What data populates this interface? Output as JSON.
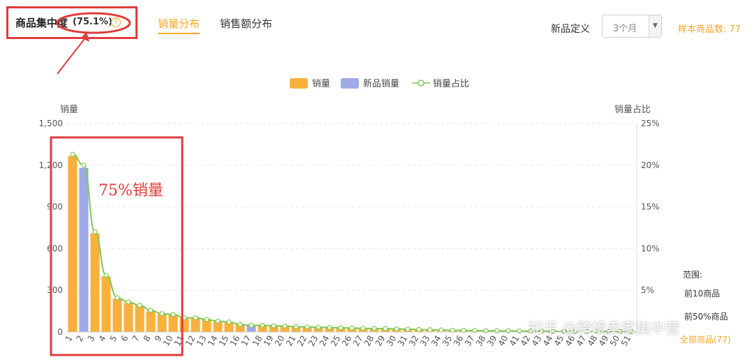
{
  "header": {
    "concentration_title": "商品集中度",
    "concentration_value": "(75.1%)",
    "help_icon": "question-circle-icon",
    "tabs": [
      {
        "label": "销量分布",
        "active": true
      },
      {
        "label": "销售额分布",
        "active": false
      }
    ],
    "new_product_label": "新品定义",
    "period_select": {
      "value": "3个月",
      "icon": "chevron-down-icon"
    },
    "sample_count": "样本商品数: 77"
  },
  "legend": {
    "sales": "销量",
    "new_sales": "新品销量",
    "share": "销量占比"
  },
  "range_panel": {
    "title": "范围:",
    "items": [
      "前10商品",
      "前50%商品",
      "全部商品(77)"
    ]
  },
  "annotation": "75%销量",
  "watermark": "知乎 @跨境卖家集中营",
  "colors": {
    "accent": "#f5a623",
    "bar_sales": "#f7b13c",
    "bar_new": "#9fa8e8",
    "share_line": "#7ec850",
    "highlight_red": "#e03c3c"
  },
  "chart_data": {
    "type": "bar",
    "title": "",
    "xlabel": "",
    "ylabel": "销量",
    "y2label": "销量占比",
    "ylim": [
      0,
      1500
    ],
    "y2lim": [
      0,
      25
    ],
    "yticks": [
      "0",
      "300",
      "600",
      "900",
      "1,200",
      "1,500"
    ],
    "y2ticks": [
      "",
      "5%",
      "10%",
      "15%",
      "20%",
      "25%"
    ],
    "grid": true,
    "legend_position": "top-center",
    "categories": [
      "1",
      "2",
      "3",
      "4",
      "5",
      "6",
      "7",
      "8",
      "9",
      "10",
      "11",
      "12",
      "13",
      "14",
      "15",
      "16",
      "17",
      "18",
      "19",
      "20",
      "21",
      "22",
      "23",
      "24",
      "25",
      "26",
      "27",
      "28",
      "29",
      "30",
      "31",
      "32",
      "33",
      "34",
      "35",
      "36",
      "37",
      "38",
      "39",
      "40",
      "41",
      "42",
      "43",
      "44",
      "45",
      "46",
      "47",
      "48",
      "49",
      "50",
      "51"
    ],
    "series": [
      {
        "name": "销量",
        "type": "bar",
        "values": [
          1265,
          0,
          710,
          400,
          240,
          210,
          190,
          150,
          130,
          125,
          100,
          100,
          90,
          75,
          70,
          55,
          0,
          50,
          45,
          42,
          38,
          36,
          34,
          32,
          30,
          28,
          26,
          25,
          24,
          22,
          20,
          18,
          16,
          14,
          12,
          11,
          10,
          9,
          8,
          8,
          7,
          6,
          5,
          5,
          4,
          4,
          4,
          3,
          3,
          3,
          3
        ]
      },
      {
        "name": "新品销量",
        "type": "bar",
        "values": [
          0,
          1180,
          0,
          0,
          0,
          0,
          0,
          0,
          0,
          0,
          0,
          0,
          0,
          0,
          0,
          0,
          45,
          0,
          0,
          0,
          0,
          0,
          0,
          0,
          0,
          0,
          0,
          0,
          0,
          0,
          0,
          0,
          0,
          0,
          0,
          0,
          0,
          0,
          0,
          0,
          0,
          0,
          0,
          0,
          0,
          0,
          0,
          0,
          0,
          0,
          0
        ]
      },
      {
        "name": "销量占比",
        "type": "line",
        "axis": "right",
        "values": [
          21.3,
          20.0,
          12.0,
          6.8,
          4.1,
          3.6,
          3.2,
          2.6,
          2.2,
          2.1,
          1.7,
          1.7,
          1.5,
          1.3,
          1.2,
          0.9,
          0.8,
          0.8,
          0.76,
          0.71,
          0.64,
          0.61,
          0.58,
          0.54,
          0.51,
          0.47,
          0.44,
          0.42,
          0.41,
          0.37,
          0.34,
          0.3,
          0.27,
          0.24,
          0.2,
          0.19,
          0.17,
          0.15,
          0.14,
          0.14,
          0.12,
          0.1,
          0.08,
          0.08,
          0.07,
          0.07,
          0.07,
          0.05,
          0.05,
          0.05,
          0.05
        ]
      }
    ]
  }
}
